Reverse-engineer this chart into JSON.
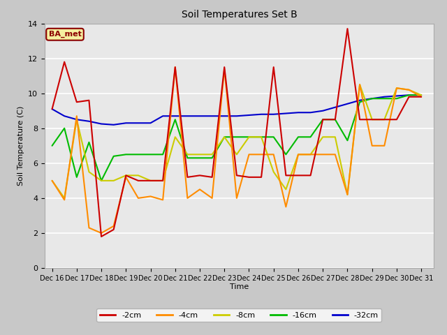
{
  "title": "Soil Temperatures Set B",
  "xlabel": "Time",
  "ylabel": "Soil Temperature (C)",
  "ylim": [
    0,
    14
  ],
  "yticks": [
    0,
    2,
    4,
    6,
    8,
    10,
    12,
    14
  ],
  "annotation_text": "BA_met",
  "annotation_bg": "#f5f0a0",
  "annotation_border": "#8b0000",
  "annotation_text_color": "#8b0000",
  "colors": {
    "-2cm": "#cc0000",
    "-4cm": "#ff8c00",
    "-8cm": "#cccc00",
    "-16cm": "#00bb00",
    "-32cm": "#0000cc"
  },
  "x_labels": [
    "Dec 16",
    "Dec 17",
    "Dec 18",
    "Dec 19",
    "Dec 20",
    "Dec 21",
    "Dec 22",
    "Dec 23",
    "Dec 24",
    "Dec 25",
    "Dec 26",
    "Dec 27",
    "Dec 28",
    "Dec 29",
    "Dec 30",
    "Dec 31"
  ],
  "series": {
    "-2cm": [
      9.1,
      11.8,
      9.5,
      9.6,
      1.8,
      2.2,
      5.3,
      5.0,
      5.0,
      5.0,
      11.5,
      5.2,
      5.3,
      5.2,
      11.5,
      5.3,
      5.2,
      5.2,
      11.5,
      5.3,
      5.3,
      5.3,
      8.5,
      8.5,
      13.7,
      8.5,
      8.5,
      8.5,
      8.5,
      9.8,
      9.8
    ],
    "-4cm": [
      5.0,
      3.9,
      8.7,
      2.3,
      2.0,
      2.4,
      5.2,
      4.0,
      4.1,
      3.9,
      11.5,
      4.0,
      4.5,
      4.0,
      11.4,
      4.0,
      6.5,
      6.5,
      6.5,
      3.5,
      6.5,
      6.5,
      6.5,
      6.5,
      4.2,
      10.5,
      7.0,
      7.0,
      10.3,
      10.2,
      9.8
    ],
    "-8cm": [
      5.0,
      4.0,
      8.5,
      5.5,
      5.0,
      5.0,
      5.3,
      5.3,
      5.0,
      5.0,
      7.5,
      6.5,
      6.5,
      6.5,
      7.5,
      6.5,
      7.5,
      7.5,
      5.5,
      4.5,
      6.5,
      6.5,
      7.5,
      7.5,
      4.2,
      10.5,
      8.5,
      8.5,
      10.3,
      10.2,
      9.9
    ],
    "-16cm": [
      7.0,
      8.0,
      5.2,
      7.2,
      5.0,
      6.4,
      6.5,
      6.5,
      6.5,
      6.5,
      8.5,
      6.3,
      6.3,
      6.3,
      7.5,
      7.5,
      7.5,
      7.5,
      7.5,
      6.5,
      7.5,
      7.5,
      8.5,
      8.5,
      7.3,
      9.5,
      9.7,
      9.7,
      9.7,
      9.9,
      9.9
    ],
    "-32cm": [
      9.1,
      8.7,
      8.5,
      8.4,
      8.25,
      8.2,
      8.3,
      8.3,
      8.3,
      8.7,
      8.7,
      8.7,
      8.7,
      8.7,
      8.7,
      8.7,
      8.75,
      8.8,
      8.8,
      8.85,
      8.9,
      8.9,
      9.0,
      9.2,
      9.4,
      9.6,
      9.7,
      9.8,
      9.85,
      9.9,
      9.9
    ]
  }
}
